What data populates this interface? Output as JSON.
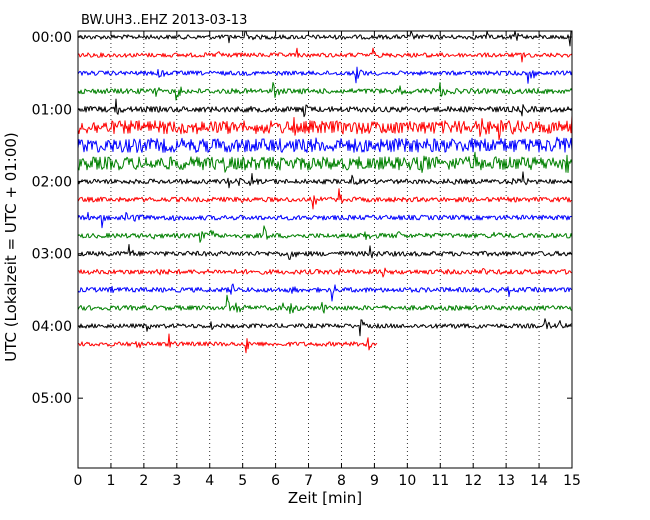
{
  "chart_data": {
    "type": "line",
    "title": "BW.UH3..EHZ 2013-03-13",
    "xlabel": "Zeit  [min]",
    "ylabel": "UTC (Lokalzeit = UTC + 01:00)",
    "xlim": [
      0,
      15
    ],
    "x_ticks": [
      0,
      1,
      2,
      3,
      4,
      5,
      6,
      7,
      8,
      9,
      10,
      11,
      12,
      13,
      14,
      15
    ],
    "x_tick_labels": [
      "0",
      "1",
      "2",
      "3",
      "4",
      "5",
      "6",
      "7",
      "8",
      "9",
      "10",
      "11",
      "12",
      "13",
      "14",
      "15"
    ],
    "y_tick_labels": [
      "00:00",
      "01:00",
      "02:00",
      "03:00",
      "04:00",
      "05:00"
    ],
    "y_tick_minutes": [
      0,
      60,
      120,
      180,
      240,
      300
    ],
    "ylim_minutes": [
      -5,
      358
    ],
    "grid": "vertical dotted at each minute",
    "colors": [
      "#000000",
      "#ff0000",
      "#0000ff",
      "#008000"
    ],
    "series": [
      {
        "start_minute": 0,
        "color": "#000000",
        "duration_min": 15,
        "amplitude": 1.0
      },
      {
        "start_minute": 15,
        "color": "#ff0000",
        "duration_min": 15,
        "amplitude": 1.0
      },
      {
        "start_minute": 30,
        "color": "#0000ff",
        "duration_min": 15,
        "amplitude": 1.0
      },
      {
        "start_minute": 45,
        "color": "#008000",
        "duration_min": 15,
        "amplitude": 1.2
      },
      {
        "start_minute": 60,
        "color": "#000000",
        "duration_min": 15,
        "amplitude": 1.3
      },
      {
        "start_minute": 75,
        "color": "#ff0000",
        "duration_min": 15,
        "amplitude": 3.0
      },
      {
        "start_minute": 90,
        "color": "#0000ff",
        "duration_min": 15,
        "amplitude": 3.2
      },
      {
        "start_minute": 105,
        "color": "#008000",
        "duration_min": 15,
        "amplitude": 3.0
      },
      {
        "start_minute": 120,
        "color": "#000000",
        "duration_min": 15,
        "amplitude": 1.1
      },
      {
        "start_minute": 135,
        "color": "#ff0000",
        "duration_min": 15,
        "amplitude": 1.1
      },
      {
        "start_minute": 150,
        "color": "#0000ff",
        "duration_min": 15,
        "amplitude": 1.1
      },
      {
        "start_minute": 165,
        "color": "#008000",
        "duration_min": 15,
        "amplitude": 1.1
      },
      {
        "start_minute": 180,
        "color": "#000000",
        "duration_min": 15,
        "amplitude": 1.1
      },
      {
        "start_minute": 195,
        "color": "#ff0000",
        "duration_min": 15,
        "amplitude": 1.1
      },
      {
        "start_minute": 210,
        "color": "#0000ff",
        "duration_min": 15,
        "amplitude": 1.1
      },
      {
        "start_minute": 225,
        "color": "#008000",
        "duration_min": 15,
        "amplitude": 1.1
      },
      {
        "start_minute": 240,
        "color": "#000000",
        "duration_min": 15,
        "amplitude": 1.0
      },
      {
        "start_minute": 255,
        "color": "#ff0000",
        "duration_min": 9.1,
        "amplitude": 1.0
      }
    ]
  }
}
